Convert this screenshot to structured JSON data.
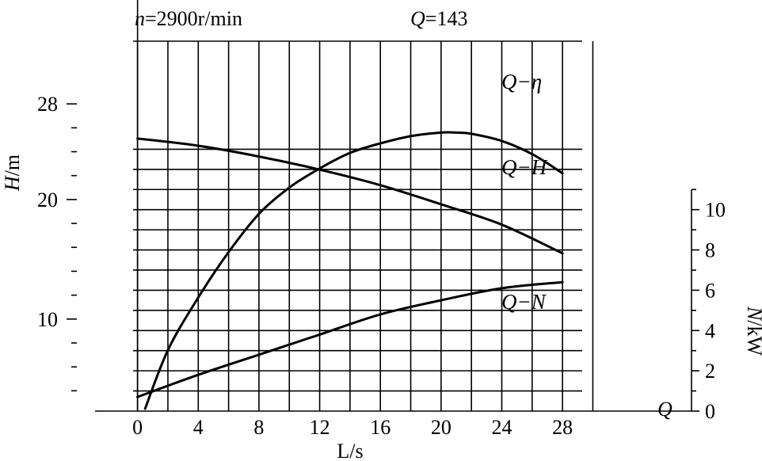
{
  "chart_data": {
    "type": "line",
    "header_speed": {
      "symbol": "n",
      "text": "=2900r/min"
    },
    "header_model": {
      "symbol": "Q",
      "text": "=143"
    },
    "xlabel": "L/s",
    "left_ylabel": {
      "symbol": "H",
      "unit": "/m"
    },
    "right_ylabel": {
      "symbol": "N",
      "unit": "/kW"
    },
    "right_axis_symbol": "Q",
    "xlim": [
      -2.8,
      36.5
    ],
    "x_ticks": [
      0,
      4,
      8,
      12,
      16,
      20,
      24,
      28
    ],
    "left_ylim": [
      2.3,
      35.5
    ],
    "left_ticks": [
      10,
      20,
      28
    ],
    "right_ylim": [
      0,
      19.7
    ],
    "right_ticks": [
      0,
      2,
      4,
      6,
      8,
      10
    ],
    "series": [
      {
        "name": "Q−η",
        "axis": "left",
        "x": [
          0.5,
          2,
          4,
          6,
          8,
          10,
          12,
          14,
          16,
          18,
          20,
          21,
          22,
          24,
          26,
          28
        ],
        "y": [
          2.5,
          7.4,
          11.8,
          15.6,
          18.8,
          21.0,
          22.6,
          23.9,
          24.7,
          25.3,
          25.6,
          25.6,
          25.5,
          24.9,
          23.8,
          22.2
        ]
      },
      {
        "name": "Q−H",
        "axis": "left",
        "x": [
          0,
          4,
          8,
          12,
          16,
          20,
          24,
          28
        ],
        "y": [
          25.1,
          24.5,
          23.6,
          22.5,
          21.2,
          19.6,
          17.9,
          15.5
        ]
      },
      {
        "name": "Q−N",
        "axis": "right",
        "x": [
          0,
          4,
          8,
          12,
          16,
          20,
          24,
          28
        ],
        "y": [
          0.7,
          1.8,
          2.8,
          3.8,
          4.8,
          5.5,
          6.1,
          6.4
        ]
      }
    ]
  }
}
